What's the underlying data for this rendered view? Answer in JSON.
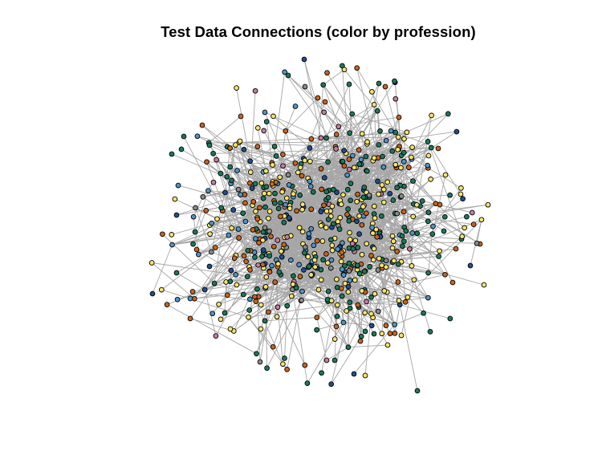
{
  "title": "Test Data Connections (color by profession)",
  "graph": {
    "edge_color": "#A6A6A6",
    "node_outline": "#000000",
    "profession_palette": [
      "#F6E46A",
      "#1B7A5A",
      "#C9651F",
      "#4F95C8",
      "#1F4F8F",
      "#C97BA4",
      "#8A8A8A"
    ],
    "profession_weights": [
      30,
      25,
      16,
      11,
      10,
      4,
      4
    ],
    "approx_node_count": 650
  }
}
